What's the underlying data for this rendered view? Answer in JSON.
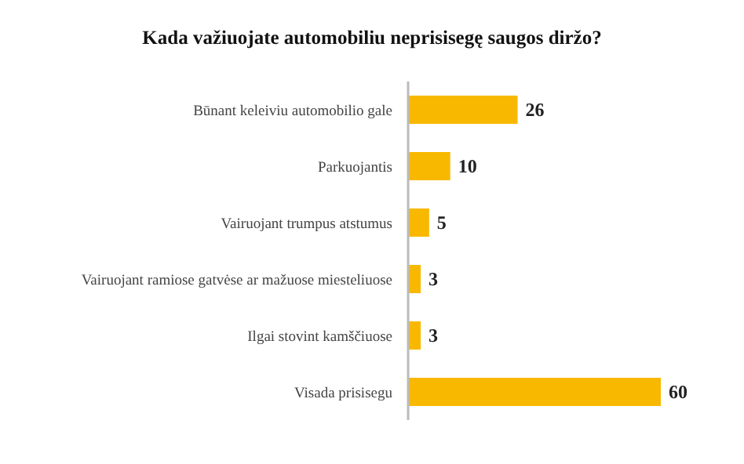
{
  "chart_data": {
    "type": "bar",
    "orientation": "horizontal",
    "title": "Kada važiuojate automobiliu neprisisegę saugos diržo?",
    "categories": [
      "Būnant keleiviu automobilio gale",
      "Parkuojantis",
      "Vairuojant trumpus atstumus",
      "Vairuojant ramiose gatvėse ar mažuose miesteliuose",
      "Ilgai stovint kamščiuose",
      "Visada prisisegu"
    ],
    "values": [
      26,
      10,
      5,
      3,
      3,
      60
    ],
    "color": "#f9b800",
    "data_labels": true
  }
}
